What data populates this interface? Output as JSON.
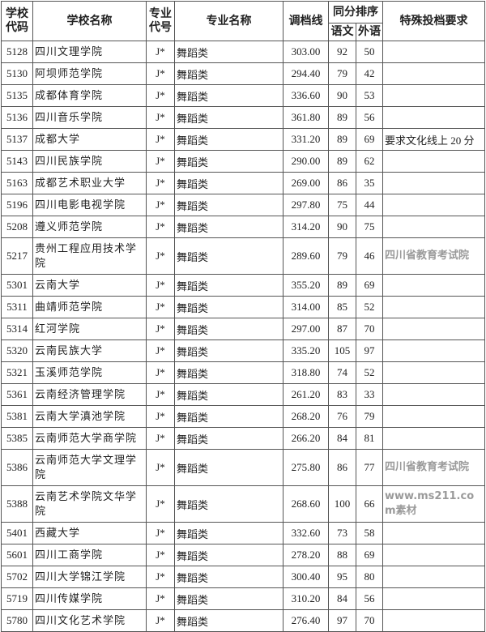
{
  "headers": {
    "code": "学校代码",
    "name": "学校名称",
    "major_code": "专业代号",
    "major_name": "专业名称",
    "score": "调档线",
    "tie": "同分排序",
    "chinese": "语文",
    "foreign": "外语",
    "special": "特殊投档要求"
  },
  "rows": [
    {
      "code": "5128",
      "name": "四川文理学院",
      "major_code": "J*",
      "major_name": "舞蹈类",
      "score": "303.00",
      "chinese": "92",
      "foreign": "50",
      "special": ""
    },
    {
      "code": "5130",
      "name": "阿坝师范学院",
      "major_code": "J*",
      "major_name": "舞蹈类",
      "score": "294.40",
      "chinese": "79",
      "foreign": "42",
      "special": ""
    },
    {
      "code": "5135",
      "name": "成都体育学院",
      "major_code": "J*",
      "major_name": "舞蹈类",
      "score": "336.60",
      "chinese": "90",
      "foreign": "53",
      "special": ""
    },
    {
      "code": "5136",
      "name": "四川音乐学院",
      "major_code": "J*",
      "major_name": "舞蹈类",
      "score": "361.80",
      "chinese": "89",
      "foreign": "56",
      "special": ""
    },
    {
      "code": "5137",
      "name": "成都大学",
      "major_code": "J*",
      "major_name": "舞蹈类",
      "score": "331.20",
      "chinese": "89",
      "foreign": "69",
      "special": "要求文化线上 20 分"
    },
    {
      "code": "5143",
      "name": "四川民族学院",
      "major_code": "J*",
      "major_name": "舞蹈类",
      "score": "290.00",
      "chinese": "89",
      "foreign": "62",
      "special": ""
    },
    {
      "code": "5163",
      "name": "成都艺术职业大学",
      "major_code": "J*",
      "major_name": "舞蹈类",
      "score": "269.00",
      "chinese": "86",
      "foreign": "35",
      "special": ""
    },
    {
      "code": "5196",
      "name": "四川电影电视学院",
      "major_code": "J*",
      "major_name": "舞蹈类",
      "score": "297.80",
      "chinese": "75",
      "foreign": "44",
      "special": ""
    },
    {
      "code": "5208",
      "name": "遵义师范学院",
      "major_code": "J*",
      "major_name": "舞蹈类",
      "score": "314.20",
      "chinese": "90",
      "foreign": "75",
      "special": ""
    },
    {
      "code": "5217",
      "name": "贵州工程应用技术学院",
      "major_code": "J*",
      "major_name": "舞蹈类",
      "score": "289.60",
      "chinese": "79",
      "foreign": "46",
      "special": ""
    },
    {
      "code": "5301",
      "name": "云南大学",
      "major_code": "J*",
      "major_name": "舞蹈类",
      "score": "355.20",
      "chinese": "89",
      "foreign": "69",
      "special": ""
    },
    {
      "code": "5311",
      "name": "曲靖师范学院",
      "major_code": "J*",
      "major_name": "舞蹈类",
      "score": "314.00",
      "chinese": "85",
      "foreign": "52",
      "special": ""
    },
    {
      "code": "5314",
      "name": "红河学院",
      "major_code": "J*",
      "major_name": "舞蹈类",
      "score": "297.00",
      "chinese": "87",
      "foreign": "70",
      "special": ""
    },
    {
      "code": "5320",
      "name": "云南民族大学",
      "major_code": "J*",
      "major_name": "舞蹈类",
      "score": "335.20",
      "chinese": "105",
      "foreign": "97",
      "special": ""
    },
    {
      "code": "5321",
      "name": "玉溪师范学院",
      "major_code": "J*",
      "major_name": "舞蹈类",
      "score": "318.80",
      "chinese": "74",
      "foreign": "52",
      "special": ""
    },
    {
      "code": "5361",
      "name": "云南经济管理学院",
      "major_code": "J*",
      "major_name": "舞蹈类",
      "score": "261.20",
      "chinese": "83",
      "foreign": "33",
      "special": ""
    },
    {
      "code": "5381",
      "name": "云南大学滇池学院",
      "major_code": "J*",
      "major_name": "舞蹈类",
      "score": "268.20",
      "chinese": "76",
      "foreign": "79",
      "special": ""
    },
    {
      "code": "5385",
      "name": "云南师范大学商学院",
      "major_code": "J*",
      "major_name": "舞蹈类",
      "score": "266.20",
      "chinese": "84",
      "foreign": "81",
      "special": ""
    },
    {
      "code": "5386",
      "name": "云南师范大学文理学院",
      "major_code": "J*",
      "major_name": "舞蹈类",
      "score": "275.80",
      "chinese": "86",
      "foreign": "77",
      "special": ""
    },
    {
      "code": "5388",
      "name": "云南艺术学院文华学院",
      "major_code": "J*",
      "major_name": "舞蹈类",
      "score": "268.60",
      "chinese": "100",
      "foreign": "66",
      "special": ""
    },
    {
      "code": "5401",
      "name": "西藏大学",
      "major_code": "J*",
      "major_name": "舞蹈类",
      "score": "332.60",
      "chinese": "73",
      "foreign": "58",
      "special": ""
    },
    {
      "code": "5601",
      "name": "四川工商学院",
      "major_code": "J*",
      "major_name": "舞蹈类",
      "score": "278.20",
      "chinese": "88",
      "foreign": "69",
      "special": ""
    },
    {
      "code": "5702",
      "name": "四川大学锦江学院",
      "major_code": "J*",
      "major_name": "舞蹈类",
      "score": "300.40",
      "chinese": "95",
      "foreign": "80",
      "special": ""
    },
    {
      "code": "5719",
      "name": "四川传媒学院",
      "major_code": "J*",
      "major_name": "舞蹈类",
      "score": "310.20",
      "chinese": "84",
      "foreign": "56",
      "special": ""
    },
    {
      "code": "5780",
      "name": "四川文化艺术学院",
      "major_code": "J*",
      "major_name": "舞蹈类",
      "score": "276.40",
      "chinese": "97",
      "foreign": "70",
      "special": ""
    }
  ],
  "watermarks": {
    "main": "四川省教育考试院",
    "site": "www.ms211.com素材"
  }
}
